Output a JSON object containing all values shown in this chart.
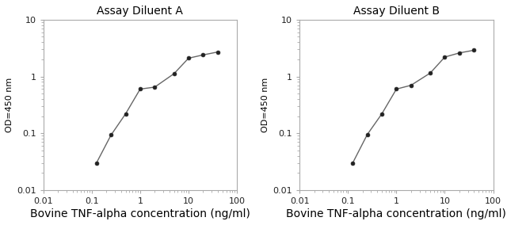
{
  "panel_A": {
    "title": "Assay Diluent A",
    "x_data": [
      0.125,
      0.25,
      0.5,
      1.0,
      2.0,
      5.0,
      10.0,
      20.0,
      40.0
    ],
    "y_data": [
      0.03,
      0.093,
      0.22,
      0.6,
      0.65,
      1.12,
      2.1,
      2.4,
      2.7
    ]
  },
  "panel_B": {
    "title": "Assay Diluent B",
    "x_data": [
      0.125,
      0.25,
      0.5,
      1.0,
      2.0,
      5.0,
      10.0,
      20.0,
      40.0
    ],
    "y_data": [
      0.03,
      0.095,
      0.22,
      0.6,
      0.7,
      1.15,
      2.2,
      2.6,
      2.9
    ]
  },
  "xlabel": "Bovine TNF-alpha concentration (ng/ml)",
  "ylabel": "OD=450 nm",
  "xlim": [
    0.01,
    100
  ],
  "ylim": [
    0.01,
    10
  ],
  "xticks": [
    0.01,
    0.1,
    1,
    10,
    100
  ],
  "xticklabels": [
    "0.01",
    "0.1",
    "1",
    "10",
    "100"
  ],
  "yticks": [
    0.01,
    0.1,
    1,
    10
  ],
  "yticklabels": [
    "0.01",
    "0.1",
    "1",
    "10"
  ],
  "line_color": "#666666",
  "marker": "o",
  "marker_color": "#222222",
  "marker_size": 3.5,
  "linewidth": 1.0,
  "title_fontsize": 10,
  "xlabel_fontsize": 10,
  "ylabel_fontsize": 8,
  "tick_fontsize": 8,
  "spine_color": "#aaaaaa",
  "bg_color": "#ffffff"
}
